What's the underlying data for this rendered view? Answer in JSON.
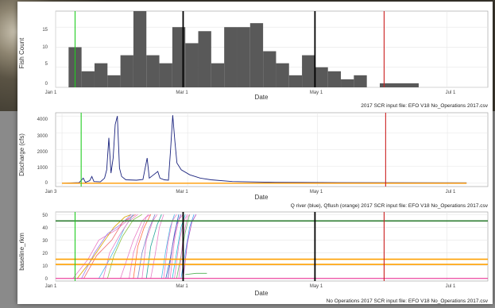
{
  "panel1": {
    "ylabel": "Fish Count",
    "xlabel": "Date",
    "yticks": [
      "0",
      "5",
      "10",
      "15"
    ],
    "xticks": [
      "Jan 1",
      "Mar 1",
      "May 1",
      "Jul 1"
    ],
    "caption": "2017 SCR input file:  EFO V18 No_Operations 2017.csv"
  },
  "panel2": {
    "ylabel": "Discharge (cfs)",
    "xlabel": "Date",
    "yticks": [
      "0",
      "1000",
      "2000",
      "3000",
      "4000"
    ],
    "xticks": [
      "Jan 3",
      "Mar 1",
      "May 1",
      "Jul 1"
    ],
    "caption": "Q river (blue), Qflush (orange) 2017 SCR input file:  EFO V18 No_Operations 2017.csv"
  },
  "panel3": {
    "ylabel": "baseline_rkm",
    "xlabel": "Date",
    "yticks": [
      "0",
      "10",
      "20",
      "30",
      "40",
      "50"
    ],
    "xticks": [
      "Jan 1",
      "Mar 1",
      "May 1",
      "Jul 1"
    ],
    "caption": "No Operations  2017 SCR input file:  EFO V18 No_Operations 2017.csv"
  },
  "colors": {
    "bar": "#595959",
    "green_line": "#22cc22",
    "red_line": "#cc2222",
    "black_line": "#000000",
    "discharge": "#1a237e",
    "flush": "#ff9900",
    "hline_green": "#2e7d32",
    "hline_orange": "#ffa000",
    "hline_pink": "#e91e8c"
  },
  "chart_data": [
    {
      "type": "bar",
      "ylabel": "Fish Count",
      "xlabel": "Date",
      "ylim": [
        0,
        19
      ],
      "xlim": [
        0,
        200
      ],
      "grid": true,
      "bins": [
        {
          "start": 6,
          "end": 12,
          "value": 10
        },
        {
          "start": 12,
          "end": 18,
          "value": 4
        },
        {
          "start": 18,
          "end": 24,
          "value": 6
        },
        {
          "start": 24,
          "end": 30,
          "value": 3
        },
        {
          "start": 30,
          "end": 36,
          "value": 8
        },
        {
          "start": 36,
          "end": 42,
          "value": 19
        },
        {
          "start": 42,
          "end": 48,
          "value": 8
        },
        {
          "start": 48,
          "end": 54,
          "value": 6
        },
        {
          "start": 54,
          "end": 60,
          "value": 15
        },
        {
          "start": 60,
          "end": 66,
          "value": 11
        },
        {
          "start": 66,
          "end": 72,
          "value": 14
        },
        {
          "start": 72,
          "end": 78,
          "value": 6
        },
        {
          "start": 78,
          "end": 84,
          "value": 15
        },
        {
          "start": 84,
          "end": 90,
          "value": 15
        },
        {
          "start": 90,
          "end": 96,
          "value": 16
        },
        {
          "start": 96,
          "end": 102,
          "value": 9
        },
        {
          "start": 102,
          "end": 108,
          "value": 6
        },
        {
          "start": 108,
          "end": 114,
          "value": 3
        },
        {
          "start": 114,
          "end": 120,
          "value": 8
        },
        {
          "start": 120,
          "end": 126,
          "value": 5
        },
        {
          "start": 126,
          "end": 132,
          "value": 4
        },
        {
          "start": 132,
          "end": 138,
          "value": 2
        },
        {
          "start": 138,
          "end": 144,
          "value": 3
        },
        {
          "start": 150,
          "end": 168,
          "value": 1
        }
      ],
      "vlines": [
        {
          "x": 9,
          "color": "green"
        },
        {
          "x": 59,
          "color": "black"
        },
        {
          "x": 120,
          "color": "black"
        },
        {
          "x": 152,
          "color": "red"
        }
      ]
    },
    {
      "type": "line",
      "ylabel": "Discharge (cfs)",
      "xlabel": "Date",
      "ylim": [
        -200,
        4200
      ],
      "xlim": [
        -3,
        200
      ],
      "grid": true,
      "series": [
        {
          "color": "blue",
          "points": [
            [
              0,
              0
            ],
            [
              8,
              30
            ],
            [
              10,
              300
            ],
            [
              11,
              50
            ],
            [
              13,
              150
            ],
            [
              14,
              400
            ],
            [
              15,
              100
            ],
            [
              18,
              80
            ],
            [
              20,
              300
            ],
            [
              21,
              800
            ],
            [
              22,
              2700
            ],
            [
              23,
              600
            ],
            [
              24,
              1500
            ],
            [
              25,
              3500
            ],
            [
              26,
              4000
            ],
            [
              27,
              900
            ],
            [
              28,
              400
            ],
            [
              30,
              200
            ],
            [
              35,
              180
            ],
            [
              38,
              220
            ],
            [
              40,
              1500
            ],
            [
              41,
              300
            ],
            [
              42,
              400
            ],
            [
              45,
              700
            ],
            [
              46,
              300
            ],
            [
              48,
              200
            ],
            [
              50,
              180
            ],
            [
              51,
              2000
            ],
            [
              52,
              4050
            ],
            [
              53,
              2500
            ],
            [
              54,
              1200
            ],
            [
              56,
              800
            ],
            [
              60,
              500
            ],
            [
              65,
              300
            ],
            [
              70,
              200
            ],
            [
              80,
              100
            ],
            [
              100,
              50
            ],
            [
              130,
              30
            ],
            [
              190,
              20
            ]
          ]
        },
        {
          "color": "orange",
          "points": [
            [
              0,
              0
            ],
            [
              190,
              0
            ]
          ]
        }
      ],
      "vlines": [
        {
          "x": 9,
          "color": "green"
        },
        {
          "x": 152,
          "color": "red"
        }
      ]
    },
    {
      "type": "line",
      "ylabel": "baseline_rkm",
      "xlabel": "Date",
      "ylim": [
        -2,
        52
      ],
      "xlim": [
        0,
        200
      ],
      "grid": true,
      "hlines": [
        {
          "y": 45,
          "color": "green"
        },
        {
          "y": 15,
          "color": "orange"
        },
        {
          "y": 11,
          "color": "orange"
        },
        {
          "y": 0,
          "color": "pink"
        }
      ],
      "vlines": [
        {
          "x": 9,
          "color": "green"
        },
        {
          "x": 59,
          "color": "black"
        },
        {
          "x": 120,
          "color": "black"
        },
        {
          "x": 152,
          "color": "red"
        }
      ],
      "series": [
        {
          "color": "#e87ec7",
          "points": [
            [
              8,
              0
            ],
            [
              15,
              15
            ],
            [
              20,
              30
            ],
            [
              28,
              38
            ],
            [
              33,
              45
            ],
            [
              36,
              50
            ]
          ]
        },
        {
          "color": "#d9a600",
          "points": [
            [
              10,
              0
            ],
            [
              16,
              13
            ],
            [
              22,
              28
            ],
            [
              27,
              40
            ],
            [
              32,
              48
            ],
            [
              35,
              50
            ]
          ]
        },
        {
          "color": "#9c7de8",
          "points": [
            [
              12,
              0
            ],
            [
              18,
              20
            ],
            [
              24,
              35
            ],
            [
              30,
              42
            ],
            [
              35,
              50
            ]
          ]
        },
        {
          "color": "#ef6b6b",
          "points": [
            [
              13,
              0
            ],
            [
              19,
              18
            ],
            [
              26,
              30
            ],
            [
              31,
              44
            ],
            [
              37,
              50
            ]
          ]
        },
        {
          "color": "#4dbbe8",
          "points": [
            [
              20,
              0
            ],
            [
              24,
              12
            ],
            [
              28,
              25
            ],
            [
              32,
              40
            ],
            [
              36,
              50
            ]
          ]
        },
        {
          "color": "#e87ec7",
          "points": [
            [
              22,
              0
            ],
            [
              25,
              20
            ],
            [
              30,
              35
            ],
            [
              34,
              45
            ],
            [
              38,
              50
            ]
          ]
        },
        {
          "color": "#8bc34a",
          "points": [
            [
              24,
              0
            ],
            [
              27,
              18
            ],
            [
              31,
              33
            ],
            [
              36,
              46
            ],
            [
              40,
              50
            ]
          ]
        },
        {
          "color": "#e87ec7",
          "points": [
            [
              30,
              0
            ],
            [
              33,
              15
            ],
            [
              36,
              30
            ],
            [
              40,
              45
            ],
            [
              43,
              50
            ]
          ]
        },
        {
          "color": "#e87ec7",
          "points": [
            [
              34,
              0
            ],
            [
              36,
              20
            ],
            [
              39,
              35
            ],
            [
              42,
              48
            ],
            [
              44,
              50
            ]
          ]
        },
        {
          "color": "#ff7043",
          "points": [
            [
              36,
              0
            ],
            [
              38,
              25
            ],
            [
              41,
              40
            ],
            [
              44,
              50
            ]
          ]
        },
        {
          "color": "#7986cb",
          "points": [
            [
              38,
              0
            ],
            [
              40,
              20
            ],
            [
              43,
              38
            ],
            [
              46,
              50
            ]
          ]
        },
        {
          "color": "#e87ec7",
          "points": [
            [
              40,
              0
            ],
            [
              42,
              30
            ],
            [
              45,
              45
            ],
            [
              47,
              50
            ]
          ]
        },
        {
          "color": "#26a69a",
          "points": [
            [
              42,
              0
            ],
            [
              44,
              25
            ],
            [
              47,
              42
            ],
            [
              49,
              50
            ]
          ]
        },
        {
          "color": "#e87ec7",
          "points": [
            [
              44,
              0
            ],
            [
              46,
              18
            ],
            [
              48,
              40
            ],
            [
              50,
              50
            ]
          ]
        },
        {
          "color": "#4dbbe8",
          "points": [
            [
              49,
              0
            ],
            [
              51,
              22
            ],
            [
              53,
              40
            ],
            [
              55,
              50
            ]
          ]
        },
        {
          "color": "#e87ec7",
          "points": [
            [
              50,
              0
            ],
            [
              52,
              28
            ],
            [
              54,
              45
            ],
            [
              56,
              50
            ]
          ]
        },
        {
          "color": "#1565c0",
          "points": [
            [
              51,
              0
            ],
            [
              53,
              15
            ],
            [
              55,
              35
            ],
            [
              57,
              50
            ]
          ]
        },
        {
          "color": "#7e57c2",
          "points": [
            [
              52,
              0
            ],
            [
              54,
              25
            ],
            [
              56,
              42
            ],
            [
              58,
              50
            ]
          ]
        },
        {
          "color": "#e87ec7",
          "points": [
            [
              53,
              0
            ],
            [
              55,
              30
            ],
            [
              57,
              46
            ],
            [
              59,
              50
            ]
          ]
        },
        {
          "color": "#26c6da",
          "points": [
            [
              54,
              0
            ],
            [
              56,
              20
            ],
            [
              58,
              40
            ],
            [
              60,
              50
            ]
          ]
        },
        {
          "color": "#e87ec7",
          "points": [
            [
              55,
              0
            ],
            [
              57,
              26
            ],
            [
              59,
              44
            ],
            [
              61,
              50
            ]
          ]
        },
        {
          "color": "#66bb6a",
          "points": [
            [
              56,
              0
            ],
            [
              58,
              18
            ],
            [
              60,
              36
            ],
            [
              62,
              50
            ]
          ]
        },
        {
          "color": "#e87ec7",
          "points": [
            [
              57,
              0
            ],
            [
              59,
              32
            ],
            [
              61,
              48
            ],
            [
              62,
              50
            ]
          ]
        },
        {
          "color": "#42a5f5",
          "points": [
            [
              58,
              0
            ],
            [
              60,
              20
            ],
            [
              62,
              40
            ],
            [
              64,
              50
            ]
          ]
        },
        {
          "color": "#ab47bc",
          "points": [
            [
              59,
              0
            ],
            [
              61,
              28
            ],
            [
              63,
              44
            ],
            [
              65,
              50
            ]
          ]
        },
        {
          "color": "#4caf50",
          "points": [
            [
              60,
              3
            ],
            [
              65,
              4
            ],
            [
              70,
              4
            ]
          ]
        }
      ]
    }
  ]
}
